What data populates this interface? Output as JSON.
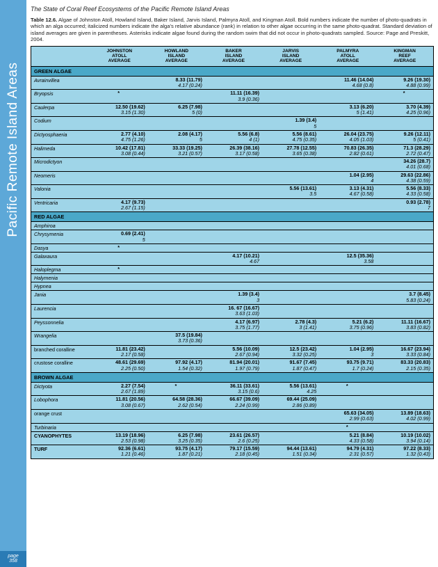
{
  "sidebar": {
    "title": "Pacific Remote Island Areas",
    "page_label": "page",
    "page_num": "358"
  },
  "doc_title": "The State of Coral Reef Ecosystems of the Pacific Remote Island Areas",
  "caption_bold": "Table 12.6.",
  "caption_rest": "  Algae of Johnston Atoll, Howland Island, Baker Island, Jarvis Island, Palmyra Atoll, and Kingman Atoll. Bold numbers indicate the number of photo-quadrats in which an alga occurred; italicized numbers indicate the alga's relative abundance (rank) in relation to other algae occurring in the same photo-quadrat.  Standard deviation of island averages are given in parentheses.  Asterisks indicate algae found during the random swim that did not occur in photo-quadrats sampled.  Source: Page and Preskitt, 2004.",
  "columns": [
    "",
    "JOHNSTON\nATOLL\nAVERAGE",
    "HOWLAND\nISLAND\nAVERAGE",
    "BAKER\nISLAND\nAVERAGE",
    "JARVIS\nISLAND\nAVERAGE",
    "PALMYRA\nATOLL\nAVERAGE",
    "KINGMAN\nREEF\nAVERAGE"
  ],
  "sections": [
    {
      "name": "GREEN ALGAE",
      "rows": [
        {
          "sp": "Avrainvillea",
          "c": [
            null,
            [
              "8.33 (11.79)",
              "4.17 (0.24)"
            ],
            null,
            null,
            [
              "11.46 (14.04)",
              "4.68 (0.8)"
            ],
            [
              "9.26 (19.30)",
              "4.88 (0.99)"
            ]
          ]
        },
        {
          "sp": "Bryopsis",
          "c": [
            "*",
            null,
            [
              "11.11 (16.39)",
              "3.9 (0.36)"
            ],
            null,
            null,
            "*"
          ]
        },
        {
          "sp": "Caulerpa",
          "c": [
            [
              "12.50 (19.62)",
              "3.15 (1.30)"
            ],
            [
              "6.25 (7.98)",
              "5 (0)"
            ],
            null,
            null,
            [
              "3.13 (6.20)",
              "5 (1.41)"
            ],
            [
              "3.70 (4.39)",
              "4.25 (0.96)"
            ]
          ]
        },
        {
          "sp": "Codium",
          "c": [
            null,
            null,
            null,
            [
              "1.39 (3.4)",
              "5"
            ],
            null,
            null
          ]
        },
        {
          "sp": "Dictyosphaeria",
          "c": [
            [
              "2.77 (4.10)",
              "4.75 (1.26)"
            ],
            [
              "2.08 (4.17)",
              "5"
            ],
            [
              "5.56 (6.8)",
              "4 (1)"
            ],
            [
              "5.56 (8.61)",
              "4.75 (0.35)"
            ],
            [
              "26.04 (23.75)",
              "4.05 (1.03)"
            ],
            [
              "9.26 (12.11)",
              "5 (0.41)"
            ]
          ]
        },
        {
          "sp": "Halimeda",
          "c": [
            [
              "10.42 (17.81)",
              "3.08 (0.44)"
            ],
            [
              "33.33 (19.25)",
              "3.21 (0.57)"
            ],
            [
              "26.39 (38.16)",
              "3.17 (0.58)"
            ],
            [
              "27.78 (12.55)",
              "3.65 (0.38)"
            ],
            [
              "70.83 (26.35)",
              "2.82 (0.61)"
            ],
            [
              "71.3 (28.29)",
              "2.72 (0.47)"
            ]
          ]
        },
        {
          "sp": "Microdictyon",
          "c": [
            null,
            null,
            null,
            null,
            null,
            [
              "34.26 (28.7)",
              "4.01 (0.68)"
            ]
          ]
        },
        {
          "sp": "Neomeris",
          "c": [
            null,
            null,
            null,
            null,
            [
              "1.04 (2.95)",
              "4"
            ],
            [
              "29.63 (22.86)",
              "4.38 (0.59)"
            ]
          ]
        },
        {
          "sp": "Valonia",
          "c": [
            null,
            null,
            null,
            [
              "5.56 (13.61)",
              "3.5"
            ],
            [
              "3.13 (4.31)",
              "4.67 (0.58)"
            ],
            [
              "5.56 (8.33)",
              "4.33 (0.58)"
            ]
          ]
        },
        {
          "sp": "Ventricaria",
          "c": [
            [
              "4.17 (9.73)",
              "2.67 (1.15)"
            ],
            null,
            null,
            null,
            null,
            [
              "0.93 (2.78)",
              "7"
            ]
          ]
        }
      ]
    },
    {
      "name": "RED ALGAE",
      "rows": [
        {
          "sp": "Amphiroa",
          "c": [
            null,
            null,
            null,
            null,
            null,
            null
          ]
        },
        {
          "sp": "Chrysymenia",
          "c": [
            [
              "0.69 (2.41)",
              "5"
            ],
            null,
            null,
            null,
            null,
            null
          ]
        },
        {
          "sp": "Dasya",
          "c": [
            "*",
            null,
            null,
            null,
            null,
            null
          ]
        },
        {
          "sp": "Galaxaura",
          "c": [
            null,
            null,
            [
              "4.17 (10.21)",
              "4.67"
            ],
            null,
            [
              "12.5 (35.36)",
              "3.58"
            ],
            null
          ]
        },
        {
          "sp": "Haloplegma",
          "c": [
            "*",
            null,
            null,
            null,
            null,
            null
          ]
        },
        {
          "sp": "Halymenia",
          "c": [
            null,
            null,
            null,
            null,
            null,
            null
          ]
        },
        {
          "sp": "Hypnea",
          "c": [
            null,
            null,
            null,
            null,
            null,
            null
          ]
        },
        {
          "sp": "Jania",
          "c": [
            null,
            null,
            [
              "1.39 (3.4)",
              "3"
            ],
            null,
            null,
            [
              "3.7 (8.45)",
              "5.83 (0.24)"
            ]
          ]
        },
        {
          "sp": "Laurencia",
          "c": [
            null,
            null,
            [
              "16. 67 (16.67)",
              "3.63 (1.03)"
            ],
            null,
            null,
            null
          ]
        },
        {
          "sp": "Peyssonnelia",
          "c": [
            null,
            null,
            [
              "4.17 (6.97)",
              "3.75 (1.77)"
            ],
            [
              "2.78 (4.3)",
              "3 (1.41)"
            ],
            [
              "5.21 (6.2)",
              "3.75 (0.96)"
            ],
            [
              "11.11 (16.67)",
              "3.83 (0.82)"
            ]
          ]
        },
        {
          "sp": "Wrangelia",
          "c": [
            null,
            [
              "37.5 (19.84)",
              "3.73 (0.36)"
            ],
            null,
            null,
            null,
            null
          ]
        },
        {
          "sp": "branched coralline",
          "noi": true,
          "c": [
            [
              "11.81 (23.42)",
              "2.17 (0.58)"
            ],
            null,
            [
              "5.56 (10.09)",
              "2.67 (0.94)"
            ],
            [
              "12.5 (23.42)",
              "3.32 (0.25)"
            ],
            [
              "1.04 (2.95)",
              "3"
            ],
            [
              "16.67 (23.94)",
              "3.33 (0.84)"
            ]
          ]
        },
        {
          "sp": "crustose coralline",
          "noi": true,
          "c": [
            [
              "48.61 (29.69)",
              "2.25 (0.50)"
            ],
            [
              "97.92 (4.17)",
              "1.54 (0.32)"
            ],
            [
              "81.94 (20.01)",
              "1.97 (0.79)"
            ],
            [
              "91.67 (7.45)",
              "1.87 (0.47)"
            ],
            [
              "93.75 (9.71)",
              "1.7 (0.24)"
            ],
            [
              "83.33 (20.83)",
              "2.15 (0.35)"
            ]
          ]
        }
      ]
    },
    {
      "name": "BROWN ALGAE",
      "rows": [
        {
          "sp": "Dictyota",
          "c": [
            [
              "2.27 (7.54)",
              "2.67 (1.89)"
            ],
            "*",
            [
              "36.11 (33.61)",
              "3.15 (0.6)"
            ],
            [
              "5.56 (13.61)",
              "4.25"
            ],
            "*",
            null
          ]
        },
        {
          "sp": "Lobophora",
          "c": [
            [
              "11.81 (20.56)",
              "3.08 (0.67)"
            ],
            [
              "64.58 (28.36)",
              "2.62 (0.54)"
            ],
            [
              "66.67 (39.09)",
              "2.24 (0.99)"
            ],
            [
              "69.44 (25.09)",
              "2.86 (0.89)"
            ],
            null,
            null
          ]
        },
        {
          "sp": "orange crust",
          "noi": true,
          "c": [
            null,
            null,
            null,
            null,
            [
              "65.63 (34.05)",
              "2.99 (0.63)"
            ],
            [
              "13.89 (18.63)",
              "4.02 (0.99)"
            ]
          ]
        },
        {
          "sp": "Turbinaria",
          "c": [
            null,
            null,
            null,
            null,
            "*",
            null
          ]
        },
        {
          "sp": "CYANOPHYTES",
          "bold": true,
          "c": [
            [
              "13.19 (18.96)",
              "2.53 (0.98)"
            ],
            [
              "6.25 (7.98)",
              "3.25 (0.35)"
            ],
            [
              "23.61 (26.57)",
              "2.6 (0.25)"
            ],
            null,
            [
              "5.21 (8.84)",
              "4.33 (0.58)"
            ],
            [
              "10.19 (10.02)",
              "3.94 (0.14)"
            ]
          ]
        },
        {
          "sp": "TURF",
          "bold": true,
          "c": [
            [
              "92.36 (6.61)",
              "1.21 (0.46)"
            ],
            [
              "93.75 (4.17)",
              "1.87 (0.21)"
            ],
            [
              "79.17 (15.59)",
              "2.18 (0.45)"
            ],
            [
              "94.44 (13.61)",
              "1.51 (0.34)"
            ],
            [
              "94.79 (4.31)",
              "2.31 (0.57)"
            ],
            [
              "97.22 (8.33)",
              "1.32 (0.43)"
            ]
          ]
        }
      ]
    }
  ]
}
